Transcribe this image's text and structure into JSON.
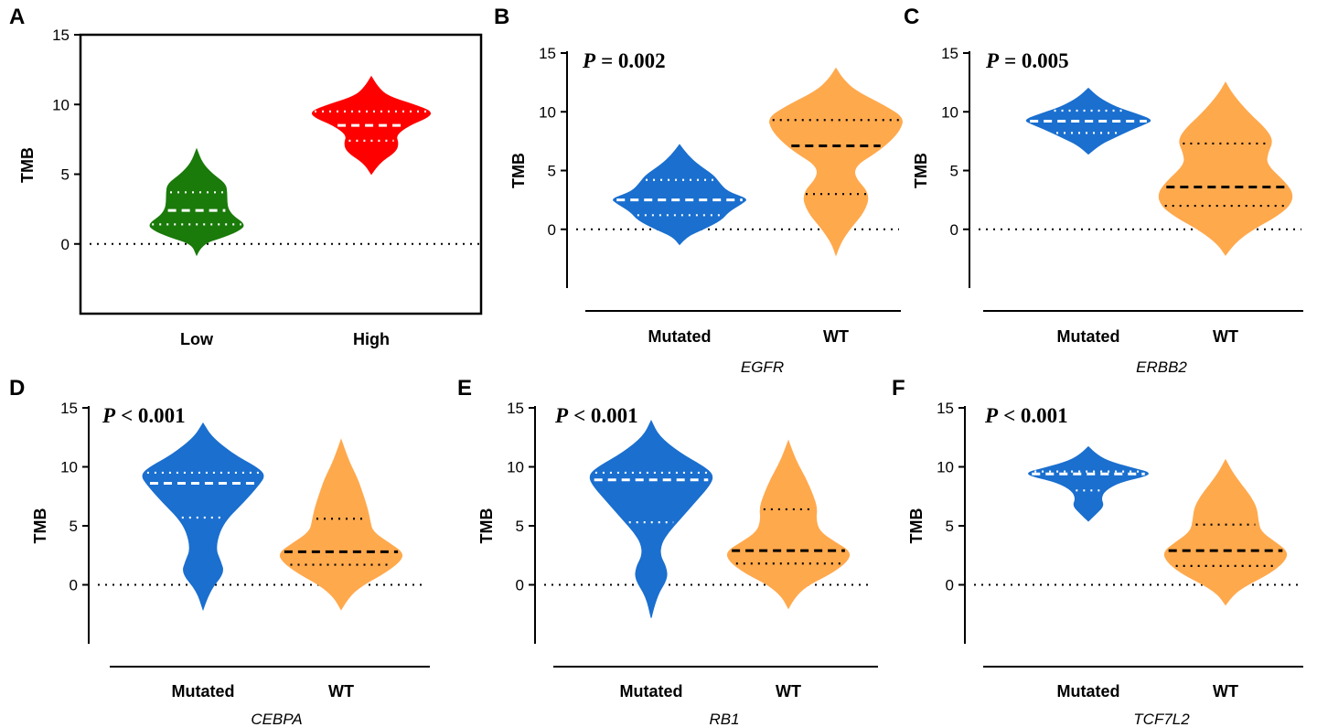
{
  "figure": {
    "ylabel": "TMB",
    "colors": {
      "axis": "#000000",
      "median_dash_light": "#ffffff",
      "median_dash_dark": "#000000"
    }
  },
  "chart_data": [
    {
      "panel": "A",
      "type": "violin",
      "title": "",
      "xlabel": "",
      "ylabel": "TMB",
      "ylim": [
        -5,
        15
      ],
      "yticks": [
        "15",
        "10",
        "5",
        "0"
      ],
      "pvalue": "",
      "categories": [
        "Low",
        "High"
      ],
      "series": [
        {
          "name": "Low",
          "color": "#1a7a0a",
          "median": 2.4,
          "q1": 1.4,
          "q3": 3.7,
          "min": -0.8,
          "max": 6.8,
          "profile": [
            [
              -0.8,
              0
            ],
            [
              0,
              0.08
            ],
            [
              0.5,
              0.45
            ],
            [
              1.0,
              0.72
            ],
            [
              1.4,
              0.8
            ],
            [
              2.0,
              0.6
            ],
            [
              2.5,
              0.52
            ],
            [
              3.0,
              0.5
            ],
            [
              3.7,
              0.5
            ],
            [
              4.3,
              0.48
            ],
            [
              5.0,
              0.26
            ],
            [
              5.8,
              0.09
            ],
            [
              6.8,
              0
            ]
          ]
        },
        {
          "name": "High",
          "color": "#ff0000",
          "median": 8.5,
          "q1": 7.4,
          "q3": 9.5,
          "min": 5.0,
          "max": 12.0,
          "profile": [
            [
              5.0,
              0
            ],
            [
              5.8,
              0.12
            ],
            [
              6.6,
              0.4
            ],
            [
              7.2,
              0.45
            ],
            [
              7.8,
              0.4
            ],
            [
              8.5,
              0.62
            ],
            [
              9.1,
              0.95
            ],
            [
              9.5,
              1.0
            ],
            [
              10.0,
              0.7
            ],
            [
              10.6,
              0.26
            ],
            [
              11.3,
              0.1
            ],
            [
              12.0,
              0
            ]
          ]
        }
      ]
    },
    {
      "panel": "B",
      "type": "violin",
      "title": "",
      "xlabel": "EGFR",
      "ylabel": "TMB",
      "ylim": [
        -5,
        15
      ],
      "yticks": [
        "15",
        "10",
        "5",
        "0"
      ],
      "pvalue": "= 0.002",
      "categories": [
        "Mutated",
        "WT"
      ],
      "series": [
        {
          "name": "Mutated",
          "color": "#1a6fcf",
          "median": 2.5,
          "q1": 1.2,
          "q3": 4.2,
          "min": -1.3,
          "max": 7.2,
          "profile": [
            [
              -1.3,
              0
            ],
            [
              -0.6,
              0.1
            ],
            [
              0,
              0.35
            ],
            [
              0.8,
              0.62
            ],
            [
              1.5,
              0.72
            ],
            [
              2.3,
              0.95
            ],
            [
              2.6,
              1.0
            ],
            [
              3.2,
              0.7
            ],
            [
              4.0,
              0.58
            ],
            [
              4.6,
              0.5
            ],
            [
              5.5,
              0.27
            ],
            [
              6.3,
              0.12
            ],
            [
              7.2,
              0
            ]
          ]
        },
        {
          "name": "WT",
          "color": "#ffa94d",
          "median": 7.1,
          "q1": 3.0,
          "q3": 9.3,
          "min": -2.2,
          "max": 13.7,
          "profile": [
            [
              -2.2,
              0
            ],
            [
              -1.2,
              0.06
            ],
            [
              0,
              0.2
            ],
            [
              1.5,
              0.42
            ],
            [
              3.0,
              0.5
            ],
            [
              4.5,
              0.26
            ],
            [
              5.5,
              0.3
            ],
            [
              6.5,
              0.58
            ],
            [
              7.5,
              0.8
            ],
            [
              8.5,
              0.95
            ],
            [
              9.5,
              1.0
            ],
            [
              10.5,
              0.72
            ],
            [
              11.8,
              0.28
            ],
            [
              12.8,
              0.1
            ],
            [
              13.7,
              0
            ]
          ]
        }
      ]
    },
    {
      "panel": "C",
      "type": "violin",
      "title": "",
      "xlabel": "ERBB2",
      "ylabel": "TMB",
      "ylim": [
        -5,
        15
      ],
      "yticks": [
        "15",
        "10",
        "5",
        "0"
      ],
      "pvalue": "= 0.005",
      "categories": [
        "Mutated",
        "WT"
      ],
      "series": [
        {
          "name": "Mutated",
          "color": "#1a6fcf",
          "median": 9.2,
          "q1": 8.2,
          "q3": 10.1,
          "min": 6.4,
          "max": 12.0,
          "profile": [
            [
              6.4,
              0
            ],
            [
              7.2,
              0.16
            ],
            [
              7.8,
              0.38
            ],
            [
              8.4,
              0.6
            ],
            [
              9.0,
              0.85
            ],
            [
              9.3,
              0.95
            ],
            [
              9.8,
              0.72
            ],
            [
              10.4,
              0.4
            ],
            [
              11.2,
              0.15
            ],
            [
              12.0,
              0
            ]
          ]
        },
        {
          "name": "WT",
          "color": "#ffa94d",
          "median": 3.6,
          "q1": 2.0,
          "q3": 7.3,
          "min": -2.2,
          "max": 12.5,
          "profile": [
            [
              -2.2,
              0
            ],
            [
              -1.2,
              0.12
            ],
            [
              0,
              0.4
            ],
            [
              1.0,
              0.72
            ],
            [
              2.0,
              0.95
            ],
            [
              3.0,
              1.0
            ],
            [
              4.0,
              0.88
            ],
            [
              5.5,
              0.6
            ],
            [
              6.5,
              0.62
            ],
            [
              7.5,
              0.7
            ],
            [
              8.5,
              0.6
            ],
            [
              10.0,
              0.32
            ],
            [
              11.5,
              0.1
            ],
            [
              12.5,
              0
            ]
          ]
        }
      ]
    },
    {
      "panel": "D",
      "type": "violin",
      "title": "",
      "xlabel": "CEBPA",
      "ylabel": "TMB",
      "ylim": [
        -5,
        15
      ],
      "yticks": [
        "15",
        "10",
        "5",
        "0"
      ],
      "pvalue": "< 0.001",
      "categories": [
        "Mutated",
        "WT"
      ],
      "series": [
        {
          "name": "Mutated",
          "color": "#1a6fcf",
          "median": 8.6,
          "q1": 5.7,
          "q3": 9.5,
          "min": -2.1,
          "max": 13.7,
          "profile": [
            [
              -2.1,
              0
            ],
            [
              -0.5,
              0.1
            ],
            [
              1.0,
              0.34
            ],
            [
              2.0,
              0.28
            ],
            [
              3.0,
              0.2
            ],
            [
              4.5,
              0.26
            ],
            [
              5.7,
              0.4
            ],
            [
              7.0,
              0.65
            ],
            [
              8.5,
              0.9
            ],
            [
              9.3,
              1.0
            ],
            [
              10.0,
              0.85
            ],
            [
              11.0,
              0.5
            ],
            [
              12.5,
              0.14
            ],
            [
              13.7,
              0
            ]
          ]
        },
        {
          "name": "WT",
          "color": "#ffa94d",
          "median": 2.8,
          "q1": 1.7,
          "q3": 5.6,
          "min": -2.1,
          "max": 12.3,
          "profile": [
            [
              -2.1,
              0
            ],
            [
              -1.0,
              0.12
            ],
            [
              0,
              0.35
            ],
            [
              1.0,
              0.7
            ],
            [
              2.0,
              0.95
            ],
            [
              2.7,
              1.0
            ],
            [
              3.5,
              0.78
            ],
            [
              4.5,
              0.5
            ],
            [
              5.5,
              0.46
            ],
            [
              6.5,
              0.42
            ],
            [
              7.8,
              0.34
            ],
            [
              9.0,
              0.26
            ],
            [
              10.5,
              0.12
            ],
            [
              12.3,
              0
            ]
          ]
        }
      ]
    },
    {
      "panel": "E",
      "type": "violin",
      "title": "",
      "xlabel": "RB1",
      "ylabel": "TMB",
      "ylim": [
        -5,
        15
      ],
      "yticks": [
        "15",
        "10",
        "5",
        "0"
      ],
      "pvalue": "< 0.001",
      "categories": [
        "Mutated",
        "WT"
      ],
      "series": [
        {
          "name": "Mutated",
          "color": "#1a6fcf",
          "median": 8.9,
          "q1": 5.3,
          "q3": 9.5,
          "min": -2.8,
          "max": 13.9,
          "profile": [
            [
              -2.8,
              0
            ],
            [
              -1.0,
              0.08
            ],
            [
              0.5,
              0.26
            ],
            [
              1.5,
              0.24
            ],
            [
              2.5,
              0.14
            ],
            [
              3.5,
              0.16
            ],
            [
              4.5,
              0.28
            ],
            [
              5.5,
              0.45
            ],
            [
              7.0,
              0.7
            ],
            [
              8.5,
              0.95
            ],
            [
              9.3,
              1.0
            ],
            [
              10.0,
              0.85
            ],
            [
              11.2,
              0.45
            ],
            [
              12.6,
              0.12
            ],
            [
              13.9,
              0
            ]
          ]
        },
        {
          "name": "WT",
          "color": "#ffa94d",
          "median": 2.9,
          "q1": 1.8,
          "q3": 6.4,
          "min": -2.0,
          "max": 12.2,
          "profile": [
            [
              -2.0,
              0
            ],
            [
              -1.0,
              0.1
            ],
            [
              0,
              0.32
            ],
            [
              1.0,
              0.7
            ],
            [
              2.0,
              0.95
            ],
            [
              2.8,
              1.0
            ],
            [
              3.6,
              0.75
            ],
            [
              4.5,
              0.5
            ],
            [
              5.5,
              0.44
            ],
            [
              6.5,
              0.46
            ],
            [
              7.5,
              0.4
            ],
            [
              9.0,
              0.28
            ],
            [
              10.5,
              0.12
            ],
            [
              12.2,
              0
            ]
          ]
        }
      ]
    },
    {
      "panel": "F",
      "type": "violin",
      "title": "",
      "xlabel": "TCF7L2",
      "ylabel": "TMB",
      "ylim": [
        -5,
        15
      ],
      "yticks": [
        "15",
        "10",
        "5",
        "0"
      ],
      "pvalue": "< 0.001",
      "categories": [
        "Mutated",
        "WT"
      ],
      "series": [
        {
          "name": "Mutated",
          "color": "#1a6fcf",
          "median": 9.4,
          "q1": 8.0,
          "q3": 9.6,
          "min": 5.4,
          "max": 11.7,
          "profile": [
            [
              5.4,
              0
            ],
            [
              6.0,
              0.12
            ],
            [
              6.7,
              0.25
            ],
            [
              7.3,
              0.2
            ],
            [
              8.0,
              0.26
            ],
            [
              8.7,
              0.5
            ],
            [
              9.2,
              0.9
            ],
            [
              9.5,
              1.0
            ],
            [
              9.9,
              0.7
            ],
            [
              10.5,
              0.3
            ],
            [
              11.1,
              0.12
            ],
            [
              11.7,
              0
            ]
          ]
        },
        {
          "name": "WT",
          "color": "#ffa94d",
          "median": 2.9,
          "q1": 1.6,
          "q3": 5.1,
          "min": -1.7,
          "max": 10.6,
          "profile": [
            [
              -1.7,
              0
            ],
            [
              -0.8,
              0.12
            ],
            [
              0,
              0.35
            ],
            [
              1.0,
              0.72
            ],
            [
              2.0,
              0.95
            ],
            [
              2.8,
              1.0
            ],
            [
              3.6,
              0.8
            ],
            [
              4.5,
              0.56
            ],
            [
              5.5,
              0.52
            ],
            [
              6.5,
              0.5
            ],
            [
              7.5,
              0.4
            ],
            [
              8.5,
              0.25
            ],
            [
              9.6,
              0.1
            ],
            [
              10.6,
              0
            ]
          ]
        }
      ]
    }
  ]
}
